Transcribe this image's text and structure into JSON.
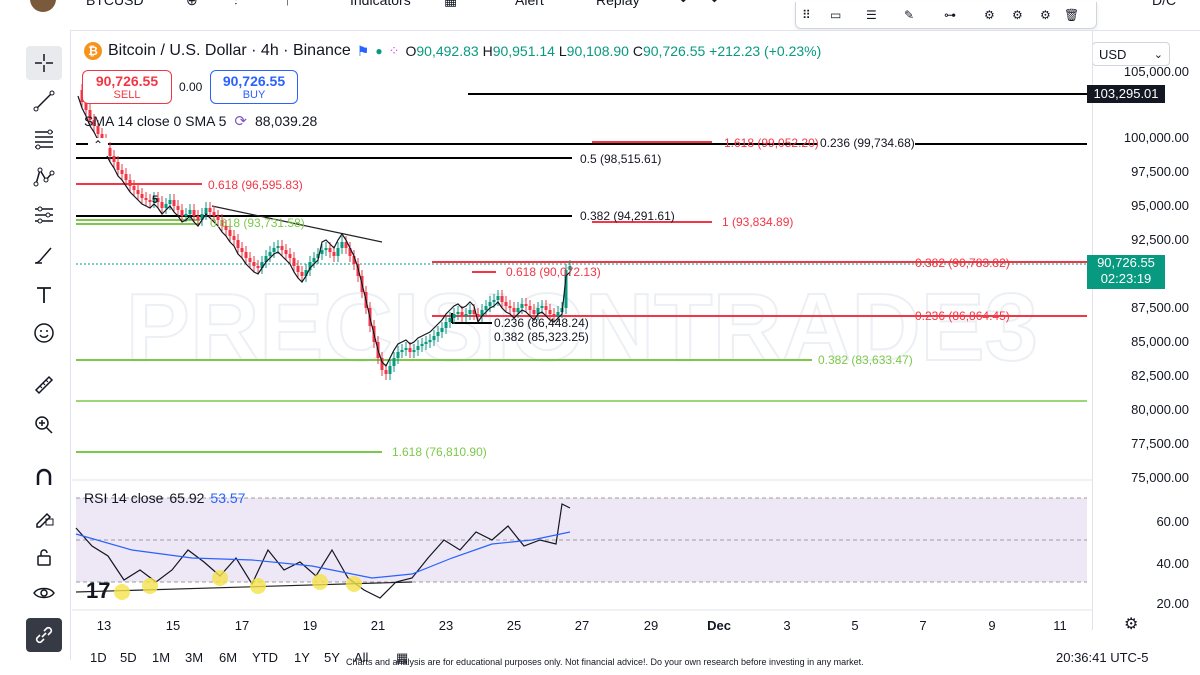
{
  "topbar": {
    "cut_items": [
      "BTCUSD",
      "Indicators",
      "Alert",
      "Replay"
    ]
  },
  "legend": {
    "symbol_icon": "bitcoin-icon",
    "title": "Bitcoin / U.S. Dollar · 4h · Binance",
    "open_label": "O",
    "open": "90,492.83",
    "high_label": "H",
    "high": "90,951.14",
    "low_label": "L",
    "low": "90,108.90",
    "close_label": "C",
    "close": "90,726.55",
    "change": "+212.23 (+0.23%)"
  },
  "trade": {
    "sell_price": "90,726.55",
    "sell_label": "SELL",
    "spread": "0.00",
    "buy_price": "90,726.55",
    "buy_label": "BUY"
  },
  "sma": {
    "label": "SMA 14 close 0 SMA 5",
    "value": "88,039.28"
  },
  "currency": "USD",
  "price_axis": [
    "105,000.00",
    "100,000.00",
    "97,500.00",
    "95,000.00",
    "92,500.00",
    "87,500.00",
    "85,000.00",
    "82,500.00",
    "80,000.00",
    "77,500.00",
    "75,000.00"
  ],
  "price_tags": {
    "level": "103,295.01",
    "last": "90,726.55",
    "countdown": "02:23:19"
  },
  "fib_labels": {
    "f1": "1.618 (99,052.20)",
    "f2": "0.236 (99,734.68)",
    "f3": "0.5 (98,515.61)",
    "f4": "0.618 (96,595.83)",
    "f5": "0.382 (94,291.61)",
    "f6": "1 (93,834.89)",
    "f7": "0.618 (93,731.58)",
    "f8": "0.618 (90,072.13)",
    "f9": "0.382 (90,783.82)",
    "f10": "0.236 (86,448.24)",
    "f11": "0.236 (86,864.45)",
    "f12": "0.382 (85,323.25)",
    "f13": "0.382 (83,633.47)",
    "f14": "1.618 (76,810.90)"
  },
  "rsi": {
    "label": "RSI 14 close",
    "value1": "65.92",
    "value2": "53.57",
    "axis": [
      "60.00",
      "40.00",
      "20.00"
    ]
  },
  "x_axis": [
    "13",
    "15",
    "17",
    "19",
    "21",
    "23",
    "25",
    "27",
    "29",
    "Dec",
    "3",
    "5",
    "7",
    "9",
    "11"
  ],
  "bottombar": {
    "timeframes": [
      "1D",
      "5D",
      "1M",
      "3M",
      "6M",
      "YTD",
      "1Y",
      "5Y",
      "All"
    ],
    "utc": "20:36:41 UTC-5"
  },
  "disclaimer": "Charts and analysis are for educational purposes only. Not financial advice!. Do your own research before investing in any market.",
  "watermark": "PRECISIONTRADE3",
  "tools": [
    "crosshair-icon",
    "trend-line-icon",
    "fib-icon",
    "pattern-icon",
    "gann-icon",
    "brush-icon",
    "text-icon",
    "emoji-icon",
    "ruler-icon",
    "zoom-icon",
    "magnet-icon",
    "lock-draw-icon",
    "lock-icon",
    "eye-icon",
    "link-icon"
  ],
  "colors": {
    "up": "#089981",
    "down": "#f23645",
    "accent": "#2962ff",
    "fib_red": "#f23645",
    "fib_green": "#7cc94a",
    "rsi_bg": "#ede7f6"
  }
}
